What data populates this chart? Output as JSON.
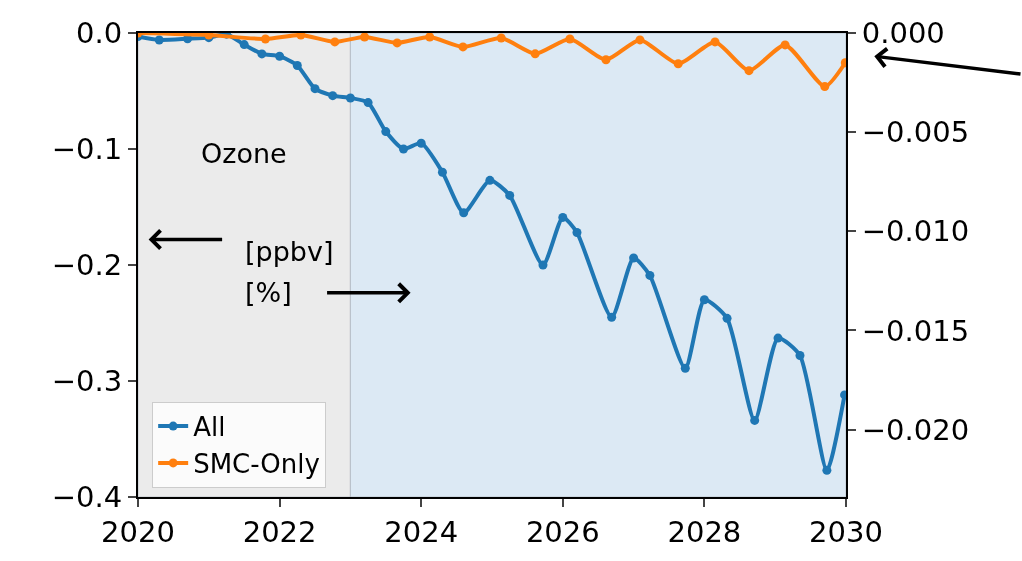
{
  "chart_data": {
    "type": "line",
    "annotations": [
      "Ozone",
      "[ppbv]",
      "[%]"
    ],
    "series": [
      {
        "name": "All",
        "color": "#1f77b4",
        "x": [
          2020.0,
          2020.3,
          2020.7,
          2021.0,
          2021.25,
          2021.5,
          2021.75,
          2022.0,
          2022.25,
          2022.5,
          2022.75,
          2023.0,
          2023.25,
          2023.5,
          2023.75,
          2024.0,
          2024.3,
          2024.6,
          2024.97,
          2025.25,
          2025.72,
          2026.0,
          2026.2,
          2026.69,
          2027.0,
          2027.23,
          2027.73,
          2028.0,
          2028.32,
          2028.71,
          2029.04,
          2029.35,
          2029.73,
          2029.98
        ],
        "values": [
          -0.003,
          -0.006,
          -0.005,
          -0.004,
          -0.001,
          -0.01,
          -0.018,
          -0.02,
          -0.028,
          -0.048,
          -0.054,
          -0.056,
          -0.06,
          -0.085,
          -0.1,
          -0.095,
          -0.12,
          -0.155,
          -0.127,
          -0.14,
          -0.2,
          -0.159,
          -0.172,
          -0.245,
          -0.194,
          -0.209,
          -0.289,
          -0.23,
          -0.246,
          -0.334,
          -0.263,
          -0.278,
          -0.377,
          -0.312
        ]
      },
      {
        "name": "SMC-Only",
        "color": "#ff7f0e",
        "axis": "y2",
        "x": [
          2020.0,
          2021.0,
          2021.8,
          2022.3,
          2022.78,
          2023.2,
          2023.66,
          2024.12,
          2024.59,
          2025.13,
          2025.61,
          2026.1,
          2026.61,
          2027.09,
          2027.63,
          2028.15,
          2028.63,
          2029.14,
          2029.7,
          2029.99
        ],
        "values": [
          0,
          -0.0001,
          -0.0003,
          -0.0001,
          -0.00045,
          -0.0002,
          -0.0005,
          -0.0002,
          -0.0007,
          -0.00025,
          -0.00105,
          -0.0003,
          -0.00135,
          -0.00035,
          -0.00155,
          -0.00045,
          -0.0019,
          -0.0006,
          -0.0027,
          -0.0015
        ]
      }
    ],
    "xlim": [
      2020,
      2030
    ],
    "xticks": [
      2020,
      2022,
      2024,
      2026,
      2028,
      2030
    ],
    "ylim": [
      -0.4,
      0.0
    ],
    "yticks": [
      {
        "value": 0,
        "label": "0.0"
      },
      {
        "value": -0.1,
        "label": "−0.1"
      },
      {
        "value": -0.2,
        "label": "−0.2"
      },
      {
        "value": -0.3,
        "label": "−0.3"
      },
      {
        "value": -0.4,
        "label": "−0.4"
      }
    ],
    "y2lim": [
      -0.0234,
      0.0
    ],
    "y2ticks": [
      {
        "value": 0,
        "label": "0.000"
      },
      {
        "value": -0.005,
        "label": "−0.005"
      },
      {
        "value": -0.01,
        "label": "−0.010"
      },
      {
        "value": -0.015,
        "label": "−0.015"
      },
      {
        "value": -0.02,
        "label": "−0.020"
      }
    ],
    "bands": [
      {
        "axis": "x",
        "from": 2020,
        "to": 2023,
        "color": "#ebebeb"
      },
      {
        "axis": "x",
        "from": 2023,
        "to": 2030,
        "color": "#dce9f4"
      }
    ],
    "grid": false,
    "legend": "bottom left",
    "marker": "circle",
    "line_style": "solid"
  }
}
